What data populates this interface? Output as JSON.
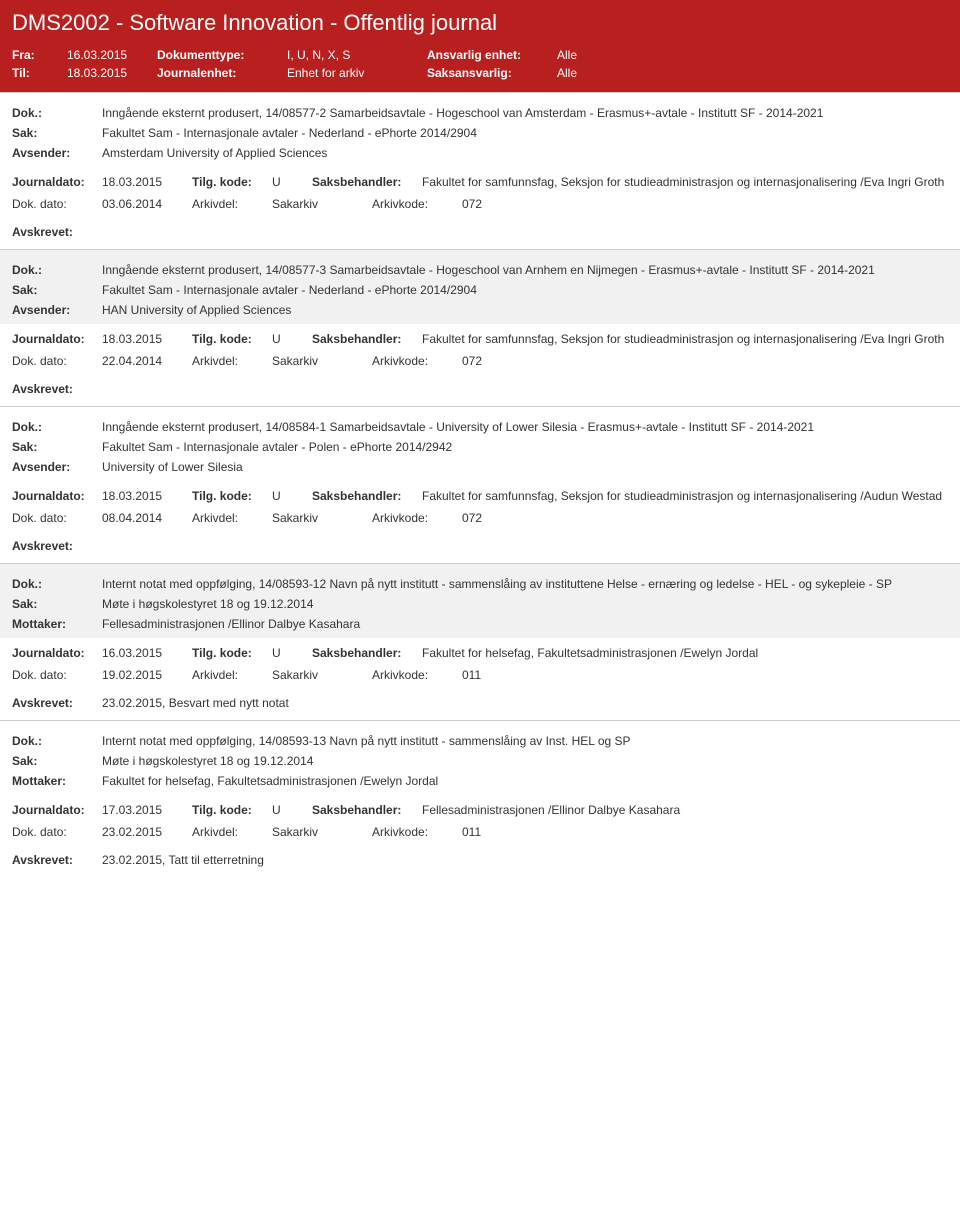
{
  "header": {
    "title": "DMS2002 - Software Innovation - Offentlig journal",
    "fra_lbl": "Fra:",
    "fra_val": "16.03.2015",
    "til_lbl": "Til:",
    "til_val": "18.03.2015",
    "doktype_lbl": "Dokumenttype:",
    "doktype_val": "I, U, N, X, S",
    "journalenhet_lbl": "Journalenhet:",
    "journalenhet_val": "Enhet for arkiv",
    "ansvarlig_lbl": "Ansvarlig enhet:",
    "ansvarlig_val": "Alle",
    "saksansvarlig_lbl": "Saksansvarlig:",
    "saksansvarlig_val": "Alle"
  },
  "labels": {
    "dok": "Dok.:",
    "sak": "Sak:",
    "avsender": "Avsender:",
    "mottaker": "Mottaker:",
    "journaldato": "Journaldato:",
    "tilgkode": "Tilg. kode:",
    "saksbehandler": "Saksbehandler:",
    "dokdato": "Dok. dato:",
    "arkivdel": "Arkivdel:",
    "arkivkode": "Arkivkode:",
    "avskrevet": "Avskrevet:"
  },
  "entries": [
    {
      "alt": false,
      "dok": "Inngående eksternt produsert, 14/08577-2 Samarbeidsavtale - Hogeschool van Amsterdam - Erasmus+-avtale - Institutt SF - 2014-2021",
      "sak": "Fakultet Sam - Internasjonale avtaler - Nederland - ePhorte 2014/2904",
      "party_lbl": "Avsender:",
      "party": "Amsterdam University of Applied Sciences",
      "journaldato": "18.03.2015",
      "tilgkode": "U",
      "saksbehandler": "Fakultet for samfunnsfag, Seksjon for studieadministrasjon og internasjonalisering /Eva Ingri Groth",
      "dokdato": "03.06.2014",
      "arkivdel": "Sakarkiv",
      "arkivkode": "072",
      "avskrevet": ""
    },
    {
      "alt": true,
      "dok": "Inngående eksternt produsert, 14/08577-3 Samarbeidsavtale - Hogeschool van Arnhem en Nijmegen - Erasmus+-avtale - Institutt SF - 2014-2021",
      "sak": "Fakultet Sam - Internasjonale avtaler - Nederland - ePhorte 2014/2904",
      "party_lbl": "Avsender:",
      "party": "HAN University of Applied Sciences",
      "journaldato": "18.03.2015",
      "tilgkode": "U",
      "saksbehandler": "Fakultet for samfunnsfag, Seksjon for studieadministrasjon og internasjonalisering /Eva Ingri Groth",
      "dokdato": "22.04.2014",
      "arkivdel": "Sakarkiv",
      "arkivkode": "072",
      "avskrevet": ""
    },
    {
      "alt": false,
      "dok": "Inngående eksternt produsert, 14/08584-1 Samarbeidsavtale - University of Lower Silesia - Erasmus+-avtale - Institutt SF - 2014-2021",
      "sak": "Fakultet Sam - Internasjonale avtaler - Polen - ePhorte 2014/2942",
      "party_lbl": "Avsender:",
      "party": "University of Lower Silesia",
      "journaldato": "18.03.2015",
      "tilgkode": "U",
      "saksbehandler": "Fakultet for samfunnsfag, Seksjon for studieadministrasjon og internasjonalisering /Audun Westad",
      "dokdato": "08.04.2014",
      "arkivdel": "Sakarkiv",
      "arkivkode": "072",
      "avskrevet": ""
    },
    {
      "alt": true,
      "dok": "Internt notat med oppfølging, 14/08593-12 Navn på nytt institutt - sammenslåing av instituttene Helse - ernæring og ledelse - HEL - og sykepleie - SP",
      "sak": "Møte i høgskolestyret 18 og 19.12.2014",
      "party_lbl": "Mottaker:",
      "party": "Fellesadministrasjonen /Ellinor Dalbye Kasahara",
      "journaldato": "16.03.2015",
      "tilgkode": "U",
      "saksbehandler": "Fakultet for helsefag, Fakultetsadministrasjonen /Ewelyn Jordal",
      "dokdato": "19.02.2015",
      "arkivdel": "Sakarkiv",
      "arkivkode": "011",
      "avskrevet": "23.02.2015, Besvart med nytt notat"
    },
    {
      "alt": false,
      "dok": "Internt notat med oppfølging, 14/08593-13 Navn på nytt institutt - sammenslåing av Inst. HEL og SP",
      "sak": "Møte i høgskolestyret 18 og 19.12.2014",
      "party_lbl": "Mottaker:",
      "party": "Fakultet for helsefag, Fakultetsadministrasjonen /Ewelyn Jordal",
      "journaldato": "17.03.2015",
      "tilgkode": "U",
      "saksbehandler": "Fellesadministrasjonen /Ellinor Dalbye Kasahara",
      "dokdato": "23.02.2015",
      "arkivdel": "Sakarkiv",
      "arkivkode": "011",
      "avskrevet": "23.02.2015, Tatt til etterretning"
    }
  ]
}
